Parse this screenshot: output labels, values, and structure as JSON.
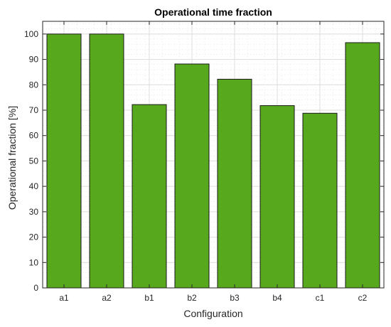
{
  "chart_data": {
    "type": "bar",
    "title": "Operational time fraction",
    "xlabel": "Configuration",
    "ylabel": "Operational fraction [%]",
    "categories": [
      "a1",
      "a2",
      "b1",
      "b2",
      "b3",
      "b4",
      "c1",
      "c2"
    ],
    "values": [
      100,
      100,
      72.2,
      88.2,
      82.2,
      71.8,
      68.8,
      96.6
    ],
    "ylim": [
      0,
      105
    ],
    "yticks": [
      0,
      10,
      20,
      30,
      40,
      50,
      60,
      70,
      80,
      90,
      100
    ],
    "grid": "major and minor",
    "bar_color": "#58a81e",
    "bar_edge_color": "#1a1a1a"
  }
}
